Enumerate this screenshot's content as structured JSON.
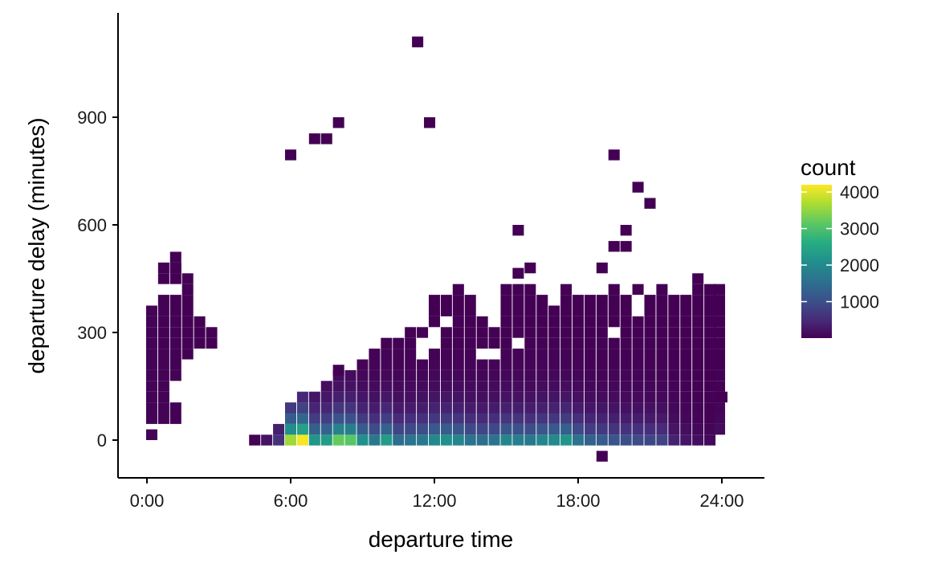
{
  "chart_data": {
    "type": "heatmap",
    "title": "",
    "xlabel": "departure time",
    "ylabel": "departure delay (minutes)",
    "xlim": [
      -0.9,
      25.6
    ],
    "ylim": [
      -100,
      1175
    ],
    "x_ticks": [
      0,
      6,
      12,
      18,
      24
    ],
    "x_tick_labels": [
      "0:00",
      "6:00",
      "12:00",
      "18:00",
      "24:00"
    ],
    "y_ticks": [
      0,
      300,
      600,
      900
    ],
    "y_tick_labels": [
      "0",
      "300",
      "600",
      "900"
    ],
    "bin_width_hours": 0.47,
    "bin_height_minutes": 30,
    "legend": {
      "title": "count",
      "position": "right",
      "range": [
        1,
        4200
      ],
      "ticks": [
        1000,
        2000,
        3000,
        4000
      ],
      "tick_labels": [
        "1000",
        "2000",
        "3000",
        "4000"
      ]
    },
    "palette": [
      "#440154",
      "#472D7B",
      "#3B528B",
      "#2C728E",
      "#21908C",
      "#27AD81",
      "#5DC863",
      "#AADC32",
      "#FDE725"
    ],
    "columns": [
      {
        "x": 0.2,
        "bins": [
          [
            15,
            30
          ]
        ]
      },
      {
        "x": 0.2,
        "from": 60,
        "to": 360,
        "value": 30
      },
      {
        "x": 0.7,
        "from": 60,
        "to": 240,
        "value": 20
      },
      {
        "x": 0.7,
        "from": 270,
        "to": 390,
        "value": 15
      },
      {
        "x": 1.2,
        "from": 60,
        "to": 90,
        "value": 10
      },
      {
        "x": 1.2,
        "from": 180,
        "to": 240,
        "value": 10
      },
      {
        "x": 1.2,
        "from": 270,
        "to": 330,
        "value": 8
      },
      {
        "x": 1.2,
        "from": 450,
        "to": 480,
        "value": 2
      },
      {
        "x": 1.7,
        "from": 300,
        "to": 330,
        "value": 4
      },
      {
        "x": 0.7,
        "from": 450,
        "to": 480,
        "value": 2
      },
      {
        "x": 1.2,
        "from": 480,
        "to": 510,
        "value": 2
      },
      {
        "x": 1.2,
        "from": 360,
        "to": 390,
        "value": 2
      },
      {
        "x": 1.7,
        "from": 420,
        "to": 450,
        "value": 2
      },
      {
        "x": 1.7,
        "from": 360,
        "to": 390,
        "value": 2
      },
      {
        "x": 1.7,
        "from": 240,
        "to": 270,
        "value": 2
      },
      {
        "x": 2.2,
        "from": 270,
        "to": 330,
        "value": 3
      },
      {
        "x": 2.7,
        "from": 270,
        "to": 300,
        "value": 2
      }
    ],
    "main_region": {
      "x_start": 4.5,
      "x_end": 23.9,
      "upper_envelope": [
        [
          4.5,
          0
        ],
        [
          5.0,
          0
        ],
        [
          5.5,
          30
        ],
        [
          6.0,
          90
        ],
        [
          6.5,
          120
        ],
        [
          7.0,
          120
        ],
        [
          7.5,
          150
        ],
        [
          8.0,
          180
        ],
        [
          8.5,
          180
        ],
        [
          9.0,
          210
        ],
        [
          9.5,
          240
        ],
        [
          10.0,
          270
        ],
        [
          10.5,
          270
        ],
        [
          11.0,
          300
        ],
        [
          11.5,
          300
        ],
        [
          12.0,
          390
        ],
        [
          12.5,
          390
        ],
        [
          13.0,
          420
        ],
        [
          13.5,
          390
        ],
        [
          14.0,
          330
        ],
        [
          14.5,
          330
        ],
        [
          15.0,
          420
        ],
        [
          15.5,
          420
        ],
        [
          16.0,
          420
        ],
        [
          16.5,
          390
        ],
        [
          17.0,
          360
        ],
        [
          17.5,
          390
        ],
        [
          18.0,
          390
        ],
        [
          18.5,
          390
        ],
        [
          19.0,
          390
        ],
        [
          19.5,
          420
        ],
        [
          20.0,
          390
        ],
        [
          20.5,
          360
        ],
        [
          21.0,
          390
        ],
        [
          21.5,
          420
        ],
        [
          22.0,
          390
        ],
        [
          22.5,
          390
        ],
        [
          23.0,
          420
        ],
        [
          23.5,
          420
        ],
        [
          23.9,
          420
        ]
      ],
      "zero_row_counts": [
        [
          4.5,
          20
        ],
        [
          5.0,
          220
        ],
        [
          5.5,
          600
        ],
        [
          6.0,
          3600
        ],
        [
          6.5,
          4150
        ],
        [
          7.0,
          2200
        ],
        [
          7.5,
          2300
        ],
        [
          8.0,
          3200
        ],
        [
          8.5,
          3100
        ],
        [
          9.0,
          2100
        ],
        [
          9.5,
          1700
        ],
        [
          10.0,
          2300
        ],
        [
          10.5,
          1500
        ],
        [
          11.0,
          1600
        ],
        [
          11.5,
          1700
        ],
        [
          12.0,
          2000
        ],
        [
          12.5,
          2100
        ],
        [
          13.0,
          1900
        ],
        [
          13.5,
          1600
        ],
        [
          14.0,
          1500
        ],
        [
          14.5,
          1600
        ],
        [
          15.0,
          1900
        ],
        [
          15.5,
          1800
        ],
        [
          16.0,
          1700
        ],
        [
          16.5,
          1900
        ],
        [
          17.0,
          2000
        ],
        [
          17.5,
          2200
        ],
        [
          18.0,
          1600
        ],
        [
          18.5,
          1300
        ],
        [
          19.0,
          1200
        ],
        [
          19.5,
          1100
        ],
        [
          20.0,
          1000
        ],
        [
          20.5,
          950
        ],
        [
          21.0,
          900
        ],
        [
          21.5,
          850
        ],
        [
          22.0,
          400
        ],
        [
          22.5,
          250
        ],
        [
          23.0,
          150
        ],
        [
          23.5,
          80
        ]
      ]
    },
    "outliers": [
      [
        11.3,
        1110
      ],
      [
        11.8,
        885
      ],
      [
        8.0,
        885
      ],
      [
        7.0,
        840
      ],
      [
        7.5,
        840
      ],
      [
        6.0,
        795
      ],
      [
        19.5,
        795
      ],
      [
        20.5,
        705
      ],
      [
        21.0,
        660
      ],
      [
        15.5,
        585
      ],
      [
        20.0,
        585
      ],
      [
        19.5,
        540
      ],
      [
        20.0,
        540
      ],
      [
        16.0,
        480
      ],
      [
        19.0,
        480
      ],
      [
        15.5,
        465
      ],
      [
        23.0,
        450
      ],
      [
        17.5,
        420
      ],
      [
        20.5,
        420
      ],
      [
        8.0,
        195
      ],
      [
        24.0,
        120
      ],
      [
        19.0,
        -45
      ]
    ],
    "holes": [
      [
        12.0,
        300
      ],
      [
        12.0,
        270
      ],
      [
        12.5,
        330
      ],
      [
        14.0,
        240
      ],
      [
        14.5,
        240
      ],
      [
        15.5,
        270
      ],
      [
        14.5,
        330
      ],
      [
        19.5,
        300
      ],
      [
        20.5,
        360
      ],
      [
        11.5,
        240
      ],
      [
        11.5,
        270
      ]
    ]
  }
}
